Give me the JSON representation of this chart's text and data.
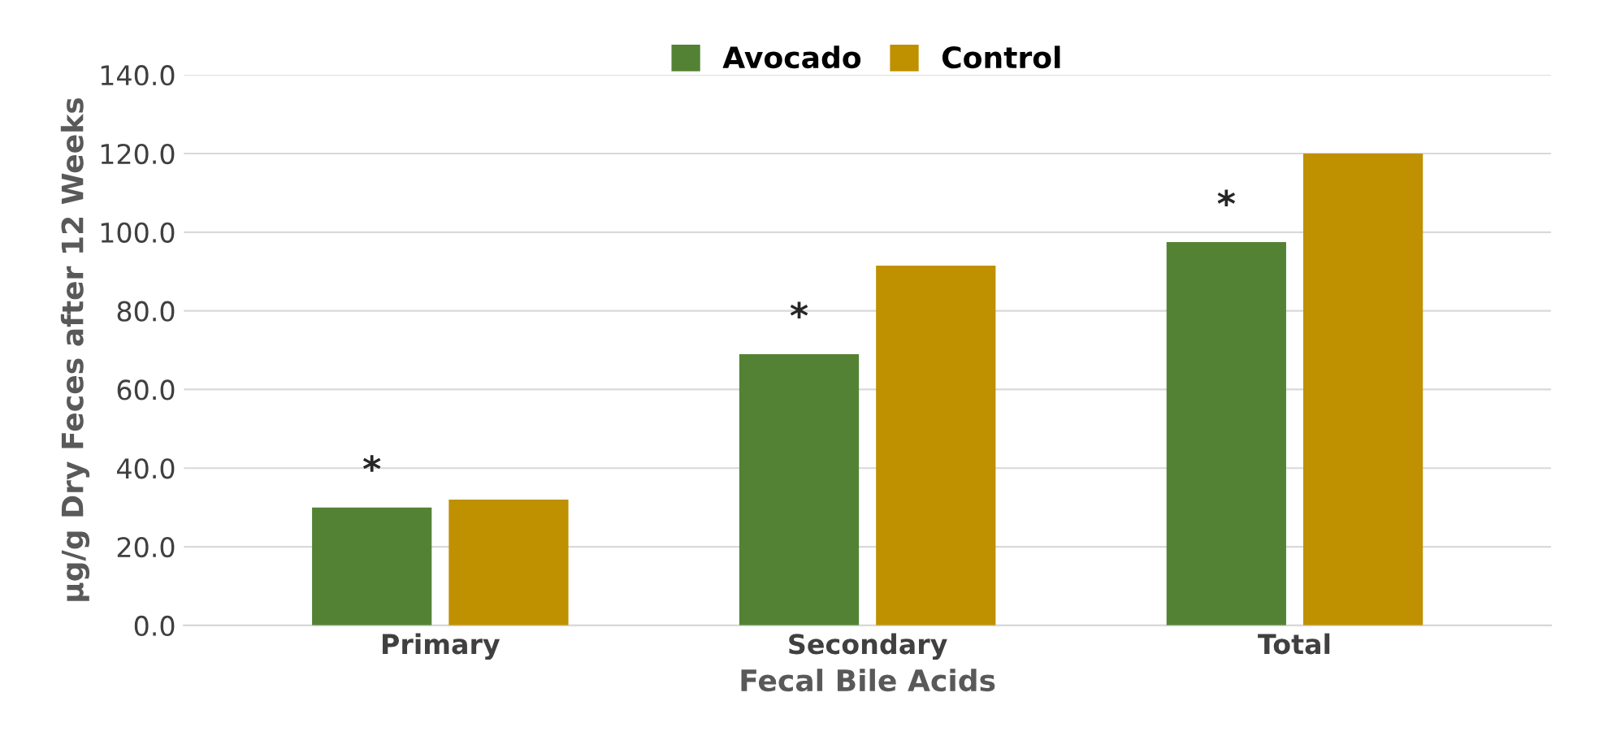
{
  "chart_data": {
    "type": "bar",
    "xlabel": "Fecal Bile Acids",
    "ylabel": "µg/g Dry Feces after 12 Weeks",
    "categories": [
      "Primary",
      "Secondary",
      "Total"
    ],
    "series": [
      {
        "name": "Avocado",
        "color": "#548235",
        "values": [
          30,
          69,
          97.5
        ]
      },
      {
        "name": "Control",
        "color": "#bf9000",
        "values": [
          32,
          91.5,
          120
        ]
      }
    ],
    "ylim": [
      0,
      140
    ],
    "yticks": [
      {
        "value": 0,
        "label": "0.0"
      },
      {
        "value": 20,
        "label": "20.0"
      },
      {
        "value": 40,
        "label": "40.0"
      },
      {
        "value": 60,
        "label": "60.0"
      },
      {
        "value": 80,
        "label": "80.0"
      },
      {
        "value": 100,
        "label": "100.0"
      },
      {
        "value": 120,
        "label": "120.0"
      },
      {
        "value": 140,
        "label": "140.0"
      }
    ],
    "grid": "y",
    "legend": "top",
    "annotations": [
      "*",
      "*",
      "*"
    ]
  }
}
